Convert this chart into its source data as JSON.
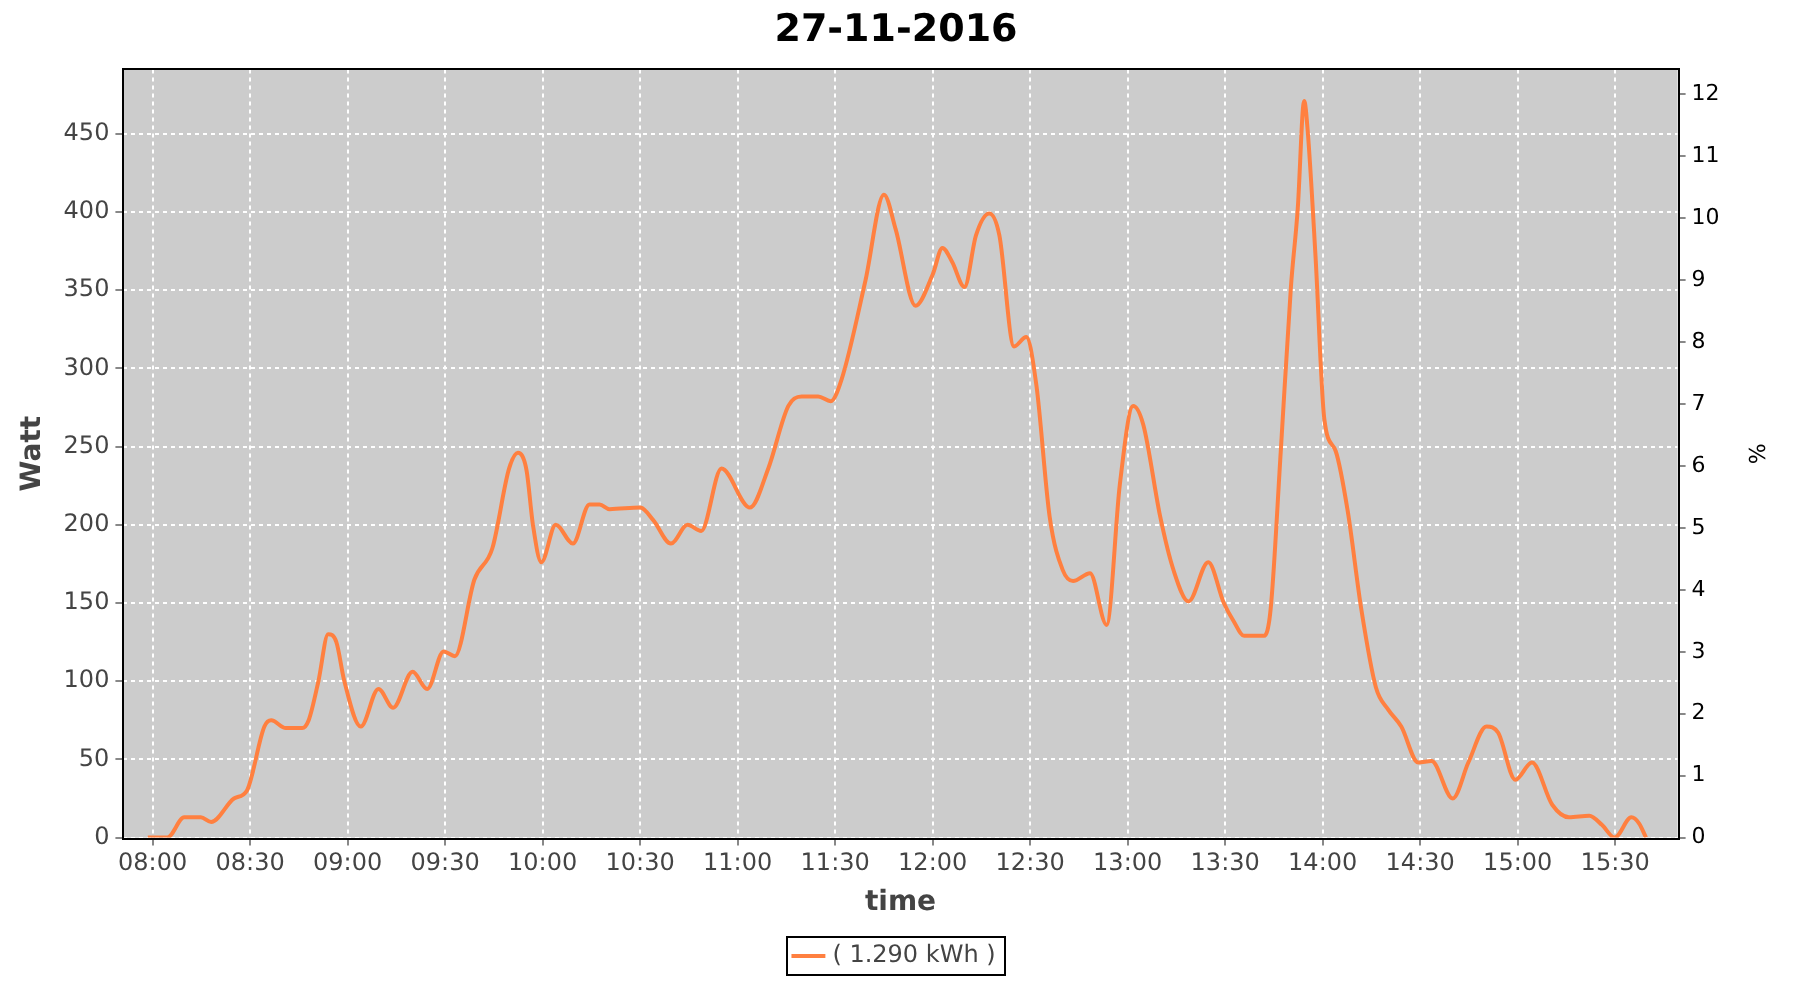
{
  "chart_data": {
    "type": "line",
    "title": "27-11-2016",
    "xlabel": "time",
    "ylabel": "Watt",
    "y2label": "%",
    "x": [
      7.975,
      8.075,
      8.162,
      8.247,
      8.3,
      8.417,
      8.483,
      8.573,
      8.608,
      8.683,
      8.767,
      8.8,
      8.85,
      8.9,
      8.942,
      8.983,
      9.067,
      9.158,
      9.233,
      9.333,
      9.408,
      9.492,
      9.55,
      9.65,
      9.742,
      9.828,
      9.873,
      9.917,
      9.95,
      9.993,
      10.067,
      10.155,
      10.24,
      10.292,
      10.343,
      10.5,
      10.567,
      10.658,
      10.743,
      10.813,
      10.917,
      11.063,
      11.157,
      11.26,
      11.328,
      11.413,
      11.477,
      11.533,
      11.655,
      11.75,
      11.81,
      11.912,
      12.0,
      12.05,
      12.1,
      12.163,
      12.222,
      12.29,
      12.342,
      12.417,
      12.48,
      12.532,
      12.6,
      12.667,
      12.72,
      12.807,
      12.892,
      12.96,
      13.028,
      13.08,
      13.167,
      13.235,
      13.312,
      13.413,
      13.493,
      13.545,
      13.597,
      13.7,
      13.733,
      13.785,
      13.837,
      13.872,
      13.905,
      13.923,
      13.963,
      14.008,
      14.067,
      14.128,
      14.198,
      14.273,
      14.335,
      14.403,
      14.49,
      14.558,
      14.667,
      14.747,
      14.84,
      14.9,
      14.988,
      15.073,
      15.177,
      15.263,
      15.367,
      15.433,
      15.497,
      15.583,
      15.623,
      15.658
    ],
    "series": [
      {
        "name": "( 1.290 kWh )",
        "color": "#ff8040",
        "values": [
          0,
          0,
          13,
          13,
          10,
          25,
          30,
          71,
          75,
          70,
          70,
          75,
          100,
          130,
          125,
          100,
          71,
          95,
          83,
          106,
          95,
          119,
          116,
          165,
          185,
          236,
          246,
          235,
          200,
          176,
          200,
          188,
          213,
          213,
          210,
          211,
          203,
          188,
          200,
          196,
          236,
          211,
          236,
          276,
          282,
          282,
          279,
          293,
          356,
          411,
          389,
          340,
          360,
          377,
          368,
          352,
          385,
          399,
          385,
          314,
          320,
          289,
          205,
          171,
          164,
          169,
          136,
          226,
          276,
          264,
          205,
          171,
          151,
          176,
          150,
          138,
          129,
          129,
          146,
          247,
          352,
          402,
          471,
          452,
          372,
          268,
          247,
          209,
          146,
          96,
          82,
          71,
          48,
          49,
          25,
          48,
          71,
          67,
          37,
          48,
          21,
          13,
          14,
          8,
          0,
          13,
          9,
          0
        ]
      }
    ],
    "xlim": [
      7.85,
      15.82
    ],
    "xticks": [
      {
        "value": 8,
        "label": "08:00"
      },
      {
        "value": 8.5,
        "label": "08:30"
      },
      {
        "value": 9,
        "label": "09:00"
      },
      {
        "value": 9.5,
        "label": "09:30"
      },
      {
        "value": 10,
        "label": "10:00"
      },
      {
        "value": 10.5,
        "label": "10:30"
      },
      {
        "value": 11,
        "label": "11:00"
      },
      {
        "value": 11.5,
        "label": "11:30"
      },
      {
        "value": 12,
        "label": "12:00"
      },
      {
        "value": 12.5,
        "label": "12:30"
      },
      {
        "value": 13,
        "label": "13:00"
      },
      {
        "value": 13.5,
        "label": "13:30"
      },
      {
        "value": 14,
        "label": "14:00"
      },
      {
        "value": 14.5,
        "label": "14:30"
      },
      {
        "value": 15,
        "label": "15:00"
      },
      {
        "value": 15.5,
        "label": "15:30"
      }
    ],
    "ylim": [
      0,
      491
    ],
    "yticks": [
      0,
      50,
      100,
      150,
      200,
      250,
      300,
      350,
      400,
      450
    ],
    "y2lim": [
      0,
      12.4
    ],
    "y2ticks": [
      0,
      1,
      2,
      3,
      4,
      5,
      6,
      7,
      8,
      9,
      10,
      11,
      12
    ],
    "grid": true,
    "legend": "bottom"
  }
}
